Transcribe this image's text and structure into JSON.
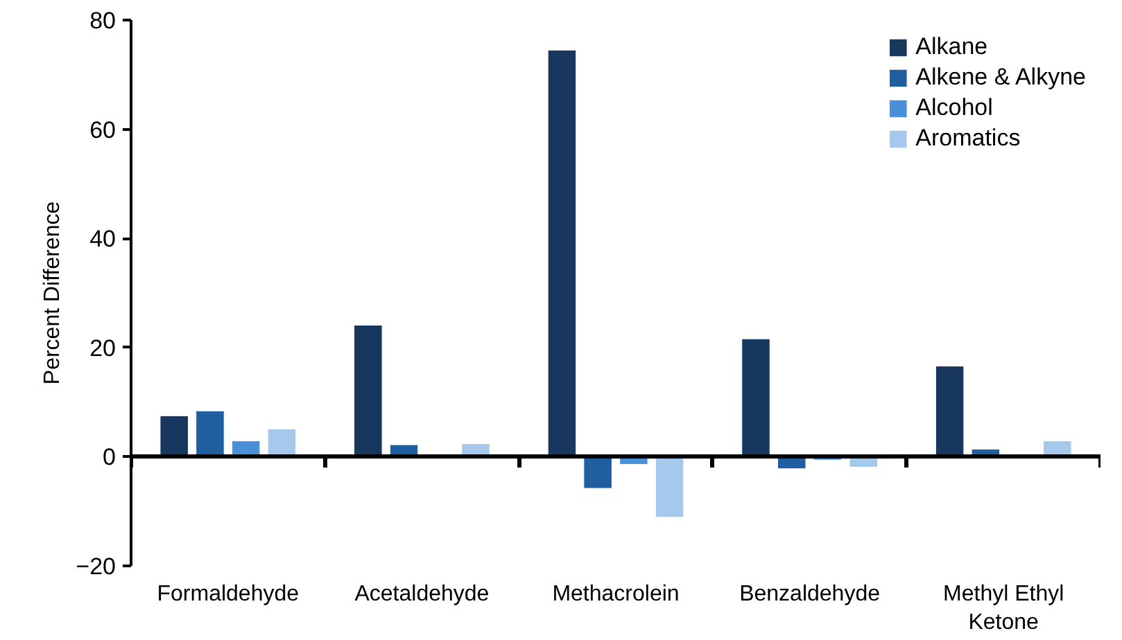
{
  "chart_data": {
    "type": "bar",
    "ylabel": "Percent Difference",
    "categories": [
      "Formaldehyde",
      "Acetaldehyde",
      "Methacrolein",
      "Benzaldehyde",
      "Methyl Ethyl Ketone"
    ],
    "series": [
      {
        "name": "Alkane",
        "color": "#17375e",
        "values": [
          7.5,
          24.1,
          74.5,
          21.6,
          16.6
        ]
      },
      {
        "name": "Alkene & Alkyne",
        "color": "#1f5f9f",
        "values": [
          8.4,
          2.2,
          -5.8,
          -2.2,
          1.4
        ]
      },
      {
        "name": "Alcohol",
        "color": "#4a90d9",
        "values": [
          2.9,
          null,
          -1.4,
          -0.6,
          null
        ]
      },
      {
        "name": "Aromatics",
        "color": "#a6c8ec",
        "values": [
          5.1,
          2.4,
          -11.1,
          -1.9,
          2.9
        ]
      }
    ],
    "ylim": [
      -20,
      80
    ],
    "yticks": [
      -20,
      0,
      20,
      40,
      60,
      80
    ],
    "legend": "top right"
  }
}
